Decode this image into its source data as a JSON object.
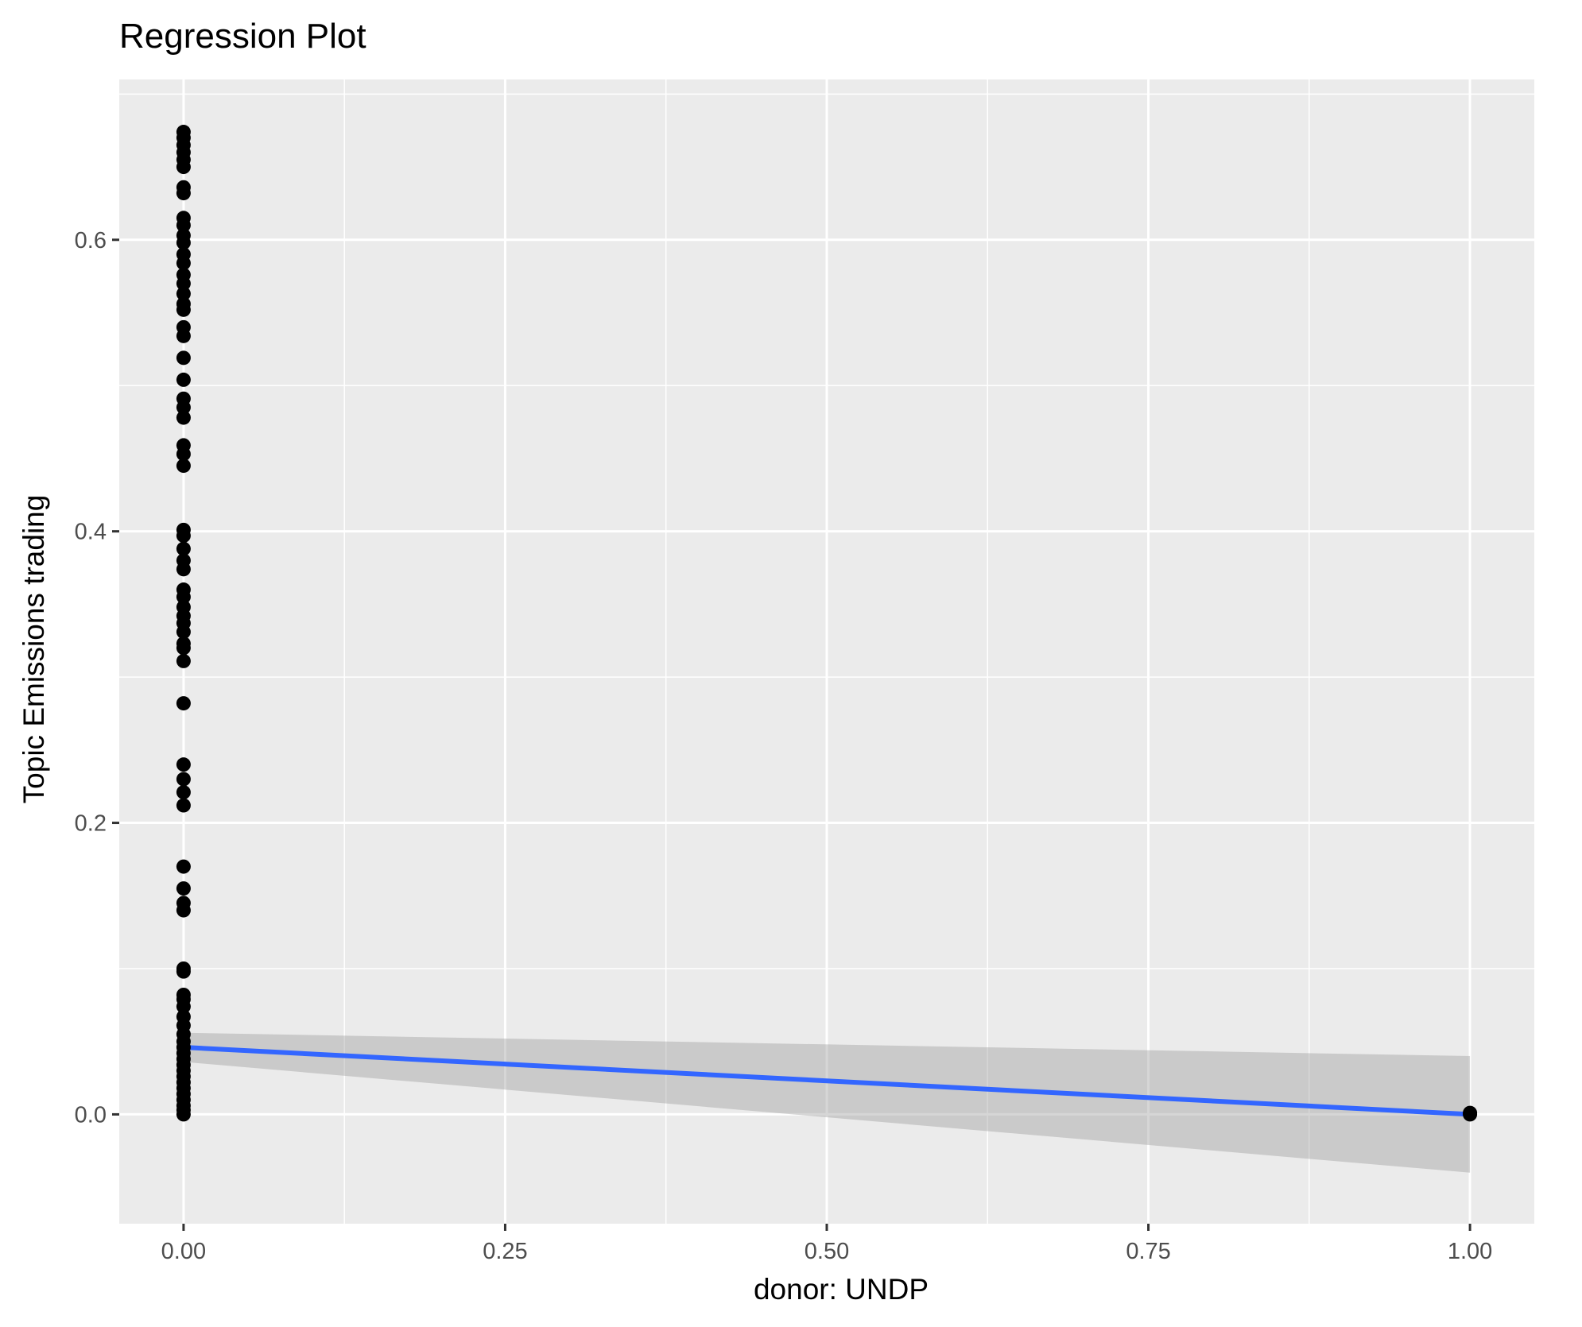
{
  "chart_data": {
    "type": "scatter",
    "title": "Regression Plot",
    "xlabel": "donor: UNDP",
    "ylabel": "Topic Emissions trading",
    "xlim": [
      -0.05,
      1.05
    ],
    "ylim": [
      -0.075,
      0.71
    ],
    "x_ticks": [
      {
        "value": 0.0,
        "label": "0.00"
      },
      {
        "value": 0.25,
        "label": "0.25"
      },
      {
        "value": 0.5,
        "label": "0.50"
      },
      {
        "value": 0.75,
        "label": "0.75"
      },
      {
        "value": 1.0,
        "label": "1.00"
      }
    ],
    "y_ticks": [
      {
        "value": 0.0,
        "label": "0.0"
      },
      {
        "value": 0.2,
        "label": "0.2"
      },
      {
        "value": 0.4,
        "label": "0.4"
      },
      {
        "value": 0.6,
        "label": "0.6"
      }
    ],
    "grid": true,
    "legend": "none",
    "colors": {
      "panel": "#ebebeb",
      "grid": "#ffffff",
      "points": "#000000",
      "fit_line": "#3366ff",
      "confidence_band": "#999999",
      "tick_label": "#4d4d4d",
      "axis_title": "#000000"
    },
    "series": [
      {
        "type": "scatter",
        "points": [
          {
            "x": 0,
            "y": 0.674
          },
          {
            "x": 0,
            "y": 0.67
          },
          {
            "x": 0,
            "y": 0.665
          },
          {
            "x": 0,
            "y": 0.66
          },
          {
            "x": 0,
            "y": 0.655
          },
          {
            "x": 0,
            "y": 0.65
          },
          {
            "x": 0,
            "y": 0.636
          },
          {
            "x": 0,
            "y": 0.632
          },
          {
            "x": 0,
            "y": 0.615
          },
          {
            "x": 0,
            "y": 0.61
          },
          {
            "x": 0,
            "y": 0.603
          },
          {
            "x": 0,
            "y": 0.598
          },
          {
            "x": 0,
            "y": 0.59
          },
          {
            "x": 0,
            "y": 0.584
          },
          {
            "x": 0,
            "y": 0.576
          },
          {
            "x": 0,
            "y": 0.57
          },
          {
            "x": 0,
            "y": 0.563
          },
          {
            "x": 0,
            "y": 0.556
          },
          {
            "x": 0,
            "y": 0.552
          },
          {
            "x": 0,
            "y": 0.54
          },
          {
            "x": 0,
            "y": 0.534
          },
          {
            "x": 0,
            "y": 0.519
          },
          {
            "x": 0,
            "y": 0.504
          },
          {
            "x": 0,
            "y": 0.491
          },
          {
            "x": 0,
            "y": 0.485
          },
          {
            "x": 0,
            "y": 0.478
          },
          {
            "x": 0,
            "y": 0.459
          },
          {
            "x": 0,
            "y": 0.453
          },
          {
            "x": 0,
            "y": 0.445
          },
          {
            "x": 0,
            "y": 0.401
          },
          {
            "x": 0,
            "y": 0.397
          },
          {
            "x": 0,
            "y": 0.388
          },
          {
            "x": 0,
            "y": 0.38
          },
          {
            "x": 0,
            "y": 0.374
          },
          {
            "x": 0,
            "y": 0.36
          },
          {
            "x": 0,
            "y": 0.355
          },
          {
            "x": 0,
            "y": 0.348
          },
          {
            "x": 0,
            "y": 0.342
          },
          {
            "x": 0,
            "y": 0.337
          },
          {
            "x": 0,
            "y": 0.331
          },
          {
            "x": 0,
            "y": 0.323
          },
          {
            "x": 0,
            "y": 0.32
          },
          {
            "x": 0,
            "y": 0.311
          },
          {
            "x": 0,
            "y": 0.282
          },
          {
            "x": 0,
            "y": 0.24
          },
          {
            "x": 0,
            "y": 0.23
          },
          {
            "x": 0,
            "y": 0.221
          },
          {
            "x": 0,
            "y": 0.212
          },
          {
            "x": 0,
            "y": 0.17
          },
          {
            "x": 0,
            "y": 0.155
          },
          {
            "x": 0,
            "y": 0.145
          },
          {
            "x": 0,
            "y": 0.14
          },
          {
            "x": 0,
            "y": 0.1
          },
          {
            "x": 0,
            "y": 0.098
          },
          {
            "x": 0,
            "y": 0.082
          },
          {
            "x": 0,
            "y": 0.079
          },
          {
            "x": 0,
            "y": 0.074
          },
          {
            "x": 0,
            "y": 0.067
          },
          {
            "x": 0,
            "y": 0.061
          },
          {
            "x": 0,
            "y": 0.055
          },
          {
            "x": 0,
            "y": 0.05
          },
          {
            "x": 0,
            "y": 0.046
          },
          {
            "x": 0,
            "y": 0.042
          },
          {
            "x": 0,
            "y": 0.038
          },
          {
            "x": 0,
            "y": 0.034
          },
          {
            "x": 0,
            "y": 0.03
          },
          {
            "x": 0,
            "y": 0.026
          },
          {
            "x": 0,
            "y": 0.022
          },
          {
            "x": 0,
            "y": 0.018
          },
          {
            "x": 0,
            "y": 0.014
          },
          {
            "x": 0,
            "y": 0.01
          },
          {
            "x": 0,
            "y": 0.006
          },
          {
            "x": 0,
            "y": 0.003
          },
          {
            "x": 0,
            "y": 0.0
          },
          {
            "x": 1,
            "y": 0.0
          },
          {
            "x": 1,
            "y": 0.001
          }
        ]
      },
      {
        "type": "line",
        "points": [
          {
            "x": 0,
            "y": 0.046
          },
          {
            "x": 1,
            "y": 0.0
          }
        ],
        "ci_band": [
          {
            "x": 0,
            "lower": 0.036,
            "upper": 0.056
          },
          {
            "x": 1,
            "lower": -0.04,
            "upper": 0.04
          }
        ]
      }
    ]
  }
}
